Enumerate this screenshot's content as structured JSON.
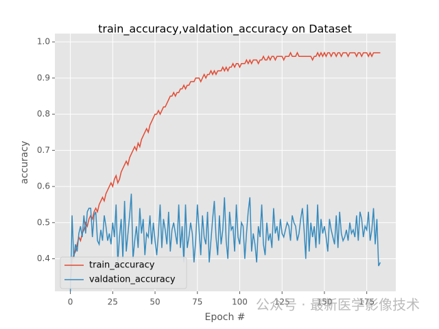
{
  "chart_data": {
    "type": "line",
    "title": "train_accuracy,valdation_accuracy on Dataset",
    "x_label": "Epoch #",
    "y_label": "accuracy",
    "watermark": "公众号 · 最新医学影像技术",
    "xlim": [
      -9.15,
      192.15
    ],
    "ylim": [
      0.31,
      1.023
    ],
    "xticks": [
      0,
      25,
      50,
      75,
      100,
      125,
      150,
      175
    ],
    "yticks": [
      0.4,
      0.5,
      0.6,
      0.7,
      0.8,
      0.9,
      {
        "value": 1,
        "label": "1.0"
      }
    ],
    "grid": true,
    "legend": "lower left",
    "x": [
      0,
      1,
      2,
      3,
      4,
      5,
      6,
      7,
      8,
      9,
      10,
      11,
      12,
      13,
      14,
      15,
      16,
      17,
      18,
      19,
      20,
      21,
      22,
      23,
      24,
      25,
      26,
      27,
      28,
      29,
      30,
      31,
      32,
      33,
      34,
      35,
      36,
      37,
      38,
      39,
      40,
      41,
      42,
      43,
      44,
      45,
      46,
      47,
      48,
      49,
      50,
      51,
      52,
      53,
      54,
      55,
      56,
      57,
      58,
      59,
      60,
      61,
      62,
      63,
      64,
      65,
      66,
      67,
      68,
      69,
      70,
      71,
      72,
      73,
      74,
      75,
      76,
      77,
      78,
      79,
      80,
      81,
      82,
      83,
      84,
      85,
      86,
      87,
      88,
      89,
      90,
      91,
      92,
      93,
      94,
      95,
      96,
      97,
      98,
      99,
      100,
      101,
      102,
      103,
      104,
      105,
      106,
      107,
      108,
      109,
      110,
      111,
      112,
      113,
      114,
      115,
      116,
      117,
      118,
      119,
      120,
      121,
      122,
      123,
      124,
      125,
      126,
      127,
      128,
      129,
      130,
      131,
      132,
      133,
      134,
      135,
      136,
      137,
      138,
      139,
      140,
      141,
      142,
      143,
      144,
      145,
      146,
      147,
      148,
      149,
      150,
      151,
      152,
      153,
      154,
      155,
      156,
      157,
      158,
      159,
      160,
      161,
      162,
      163,
      164,
      165,
      166,
      167,
      168,
      169,
      170,
      171,
      172,
      173,
      174,
      175,
      176,
      177,
      178,
      179,
      180,
      181,
      182,
      183
    ],
    "series": [
      {
        "name": "train_accuracy",
        "color": "#e24a33",
        "values": [
          0.33,
          0.4,
          0.41,
          0.42,
          0.44,
          0.46,
          0.45,
          0.47,
          0.48,
          0.5,
          0.49,
          0.51,
          0.52,
          0.51,
          0.53,
          0.54,
          0.53,
          0.55,
          0.56,
          0.57,
          0.56,
          0.58,
          0.59,
          0.6,
          0.61,
          0.6,
          0.62,
          0.63,
          0.61,
          0.62,
          0.64,
          0.65,
          0.66,
          0.67,
          0.66,
          0.68,
          0.69,
          0.7,
          0.71,
          0.7,
          0.72,
          0.71,
          0.73,
          0.74,
          0.75,
          0.76,
          0.75,
          0.77,
          0.78,
          0.79,
          0.8,
          0.8,
          0.81,
          0.8,
          0.81,
          0.82,
          0.82,
          0.83,
          0.84,
          0.85,
          0.85,
          0.86,
          0.85,
          0.86,
          0.86,
          0.87,
          0.87,
          0.88,
          0.87,
          0.88,
          0.88,
          0.89,
          0.89,
          0.89,
          0.9,
          0.9,
          0.9,
          0.89,
          0.9,
          0.91,
          0.9,
          0.91,
          0.91,
          0.92,
          0.91,
          0.92,
          0.91,
          0.92,
          0.92,
          0.92,
          0.93,
          0.92,
          0.93,
          0.92,
          0.93,
          0.93,
          0.94,
          0.93,
          0.94,
          0.94,
          0.93,
          0.94,
          0.94,
          0.94,
          0.95,
          0.94,
          0.95,
          0.94,
          0.95,
          0.95,
          0.95,
          0.94,
          0.95,
          0.95,
          0.96,
          0.95,
          0.95,
          0.96,
          0.95,
          0.96,
          0.96,
          0.95,
          0.96,
          0.96,
          0.96,
          0.96,
          0.95,
          0.96,
          0.96,
          0.96,
          0.97,
          0.96,
          0.96,
          0.96,
          0.97,
          0.96,
          0.96,
          0.96,
          0.96,
          0.96,
          0.96,
          0.96,
          0.96,
          0.95,
          0.96,
          0.96,
          0.97,
          0.96,
          0.97,
          0.96,
          0.97,
          0.96,
          0.97,
          0.97,
          0.96,
          0.97,
          0.97,
          0.96,
          0.97,
          0.97,
          0.96,
          0.97,
          0.97,
          0.97,
          0.96,
          0.97,
          0.97,
          0.97,
          0.97,
          0.96,
          0.97,
          0.97,
          0.96,
          0.97,
          0.97,
          0.97,
          0.96,
          0.97,
          0.96,
          0.97,
          0.97,
          0.97,
          0.97,
          0.97
        ]
      },
      {
        "name": "valdation_accuracy",
        "color": "#348abd",
        "values": [
          0.31,
          0.52,
          0.4,
          0.44,
          0.42,
          0.47,
          0.49,
          0.46,
          0.52,
          0.47,
          0.53,
          0.54,
          0.54,
          0.46,
          0.52,
          0.53,
          0.45,
          0.44,
          0.48,
          0.45,
          0.52,
          0.49,
          0.45,
          0.47,
          0.44,
          0.5,
          0.46,
          0.55,
          0.39,
          0.46,
          0.51,
          0.4,
          0.56,
          0.42,
          0.47,
          0.52,
          0.58,
          0.4,
          0.45,
          0.49,
          0.43,
          0.54,
          0.47,
          0.51,
          0.41,
          0.47,
          0.46,
          0.52,
          0.44,
          0.5,
          0.45,
          0.41,
          0.47,
          0.55,
          0.43,
          0.51,
          0.48,
          0.44,
          0.53,
          0.42,
          0.48,
          0.5,
          0.47,
          0.44,
          0.55,
          0.43,
          0.49,
          0.39,
          0.55,
          0.43,
          0.46,
          0.5,
          0.47,
          0.39,
          0.45,
          0.55,
          0.48,
          0.41,
          0.52,
          0.46,
          0.44,
          0.53,
          0.39,
          0.45,
          0.51,
          0.56,
          0.46,
          0.41,
          0.52,
          0.44,
          0.48,
          0.57,
          0.45,
          0.4,
          0.53,
          0.48,
          0.49,
          0.42,
          0.55,
          0.46,
          0.44,
          0.5,
          0.49,
          0.4,
          0.47,
          0.53,
          0.57,
          0.42,
          0.47,
          0.44,
          0.39,
          0.49,
          0.46,
          0.55,
          0.44,
          0.41,
          0.5,
          0.45,
          0.47,
          0.43,
          0.54,
          0.47,
          0.49,
          0.45,
          0.51,
          0.47,
          0.46,
          0.48,
          0.5,
          0.49,
          0.45,
          0.52,
          0.5,
          0.49,
          0.45,
          0.47,
          0.51,
          0.54,
          0.48,
          0.4,
          0.55,
          0.42,
          0.5,
          0.46,
          0.49,
          0.43,
          0.55,
          0.44,
          0.51,
          0.47,
          0.49,
          0.46,
          0.42,
          0.51,
          0.48,
          0.46,
          0.44,
          0.52,
          0.43,
          0.53,
          0.47,
          0.45,
          0.46,
          0.48,
          0.45,
          0.5,
          0.47,
          0.48,
          0.46,
          0.52,
          0.45,
          0.53,
          0.51,
          0.46,
          0.49,
          0.48,
          0.53,
          0.45,
          0.48,
          0.54,
          0.44,
          0.51,
          0.38,
          0.39
        ]
      }
    ]
  }
}
